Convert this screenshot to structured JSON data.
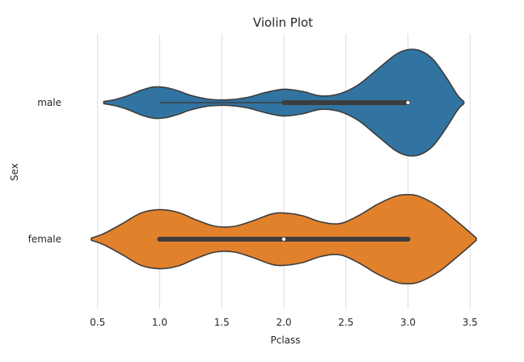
{
  "chart_data": {
    "type": "violin",
    "orientation": "horizontal",
    "title": "Violin Plot",
    "xlabel": "Pclass",
    "ylabel": "Sex",
    "xlim": [
      0.3,
      3.7
    ],
    "xticks": [
      0.5,
      1.0,
      1.5,
      2.0,
      2.5,
      3.0,
      3.5
    ],
    "xtick_labels": [
      "0.5",
      "1.0",
      "1.5",
      "2.0",
      "2.5",
      "3.0",
      "3.5"
    ],
    "grid": "vertical",
    "categories": [
      "male",
      "female"
    ],
    "series": [
      {
        "category": "male",
        "color": "#3274a1",
        "range": [
          0.55,
          3.45
        ],
        "density": [
          [
            0.55,
            0.02
          ],
          [
            0.65,
            0.06
          ],
          [
            0.75,
            0.13
          ],
          [
            0.85,
            0.22
          ],
          [
            0.95,
            0.28
          ],
          [
            1.05,
            0.27
          ],
          [
            1.15,
            0.21
          ],
          [
            1.25,
            0.13
          ],
          [
            1.4,
            0.06
          ],
          [
            1.55,
            0.05
          ],
          [
            1.7,
            0.09
          ],
          [
            1.85,
            0.18
          ],
          [
            2.0,
            0.24
          ],
          [
            2.15,
            0.2
          ],
          [
            2.3,
            0.12
          ],
          [
            2.45,
            0.16
          ],
          [
            2.6,
            0.32
          ],
          [
            2.75,
            0.59
          ],
          [
            2.9,
            0.86
          ],
          [
            3.0,
            0.95
          ],
          [
            3.1,
            0.93
          ],
          [
            3.2,
            0.78
          ],
          [
            3.3,
            0.48
          ],
          [
            3.4,
            0.13
          ],
          [
            3.45,
            0.02
          ]
        ],
        "box": {
          "whisker_low": 1.0,
          "q1": 2.0,
          "median": 3.0,
          "q3": 3.0,
          "whisker_high": 3.0
        }
      },
      {
        "category": "female",
        "color": "#e1812c",
        "range": [
          0.45,
          3.55
        ],
        "density": [
          [
            0.45,
            0.02
          ],
          [
            0.55,
            0.1
          ],
          [
            0.7,
            0.28
          ],
          [
            0.85,
            0.47
          ],
          [
            1.0,
            0.53
          ],
          [
            1.15,
            0.48
          ],
          [
            1.3,
            0.34
          ],
          [
            1.45,
            0.23
          ],
          [
            1.6,
            0.23
          ],
          [
            1.75,
            0.33
          ],
          [
            1.9,
            0.45
          ],
          [
            2.0,
            0.47
          ],
          [
            2.15,
            0.42
          ],
          [
            2.3,
            0.31
          ],
          [
            2.45,
            0.28
          ],
          [
            2.6,
            0.42
          ],
          [
            2.75,
            0.62
          ],
          [
            2.9,
            0.77
          ],
          [
            3.0,
            0.8
          ],
          [
            3.1,
            0.76
          ],
          [
            3.25,
            0.58
          ],
          [
            3.4,
            0.31
          ],
          [
            3.5,
            0.12
          ],
          [
            3.55,
            0.02
          ]
        ],
        "box": {
          "whisker_low": 1.0,
          "q1": 1.0,
          "median": 2.0,
          "q3": 3.0,
          "whisker_high": 3.0
        }
      }
    ]
  }
}
